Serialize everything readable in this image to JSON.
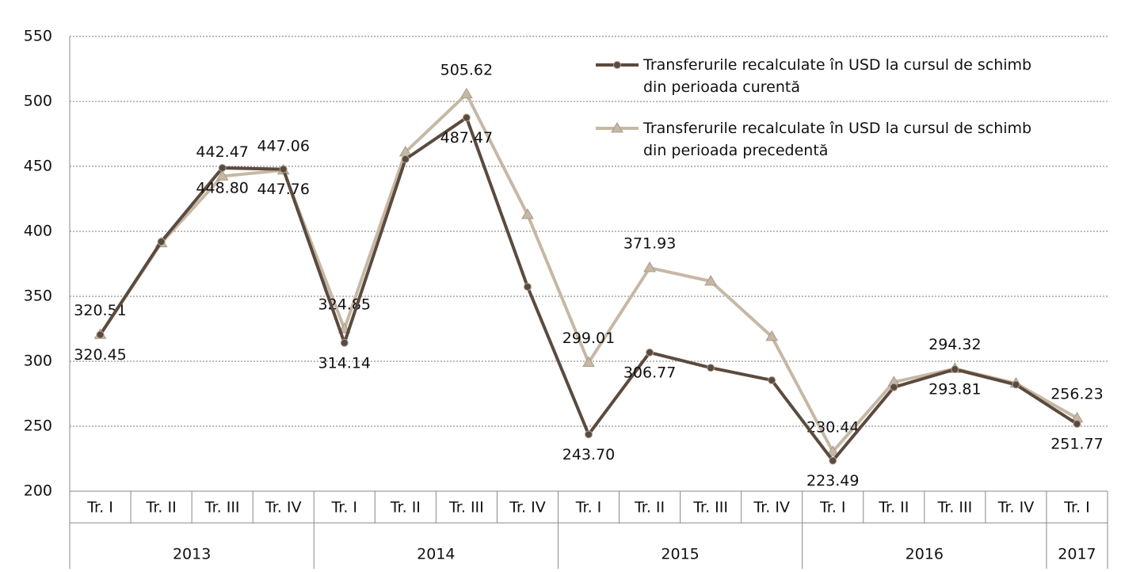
{
  "chart_data": {
    "type": "line",
    "categories": [
      "Tr. I",
      "Tr. II",
      "Tr. III",
      "Tr. IV",
      "Tr. I",
      "Tr. II",
      "Tr. III",
      "Tr. IV",
      "Tr. I",
      "Tr. II",
      "Tr. III",
      "Tr. IV",
      "Tr. I",
      "Tr. II",
      "Tr. III",
      "Tr. IV",
      "Tr. I"
    ],
    "groups": [
      {
        "label": "2013",
        "span": 4
      },
      {
        "label": "2014",
        "span": 4
      },
      {
        "label": "2015",
        "span": 4
      },
      {
        "label": "2016",
        "span": 4
      },
      {
        "label": "2017",
        "span": 1
      }
    ],
    "series": [
      {
        "name": "Transferurile recalculate în USD la cursul de schimb din perioada curentă",
        "color": "#5b4a3e",
        "marker": "circle",
        "values": [
          320.45,
          392,
          448.8,
          447.76,
          314.14,
          455.5,
          487.47,
          357.3,
          243.7,
          306.77,
          295,
          285.4,
          223.49,
          280,
          293.81,
          282,
          251.77
        ],
        "value_labels": [
          "320.45",
          null,
          "448.80",
          "447.76",
          "314.14",
          null,
          "487.47",
          null,
          "243.70",
          "306.77",
          null,
          null,
          "223.49",
          null,
          "293.81",
          null,
          "251.77"
        ]
      },
      {
        "name": "Transferurile recalculate în USD la cursul de schimb din perioada  precedentă",
        "color": "#c6b8a5",
        "marker": "triangle",
        "values": [
          320.51,
          391,
          442.47,
          447.06,
          324.85,
          461,
          505.62,
          412.8,
          299.01,
          371.93,
          361.6,
          319,
          230.44,
          284,
          294.32,
          283,
          256.23
        ],
        "value_labels": [
          "320.51",
          null,
          "442.47",
          "447.06",
          "324.85",
          null,
          "505.62",
          null,
          "299.01",
          "371.93",
          null,
          null,
          "230.44",
          null,
          "294.32",
          null,
          "256.23"
        ]
      }
    ],
    "ylim": [
      200,
      550
    ],
    "yticks": [
      200,
      250,
      300,
      350,
      400,
      450,
      500,
      550
    ],
    "grid": true
  }
}
